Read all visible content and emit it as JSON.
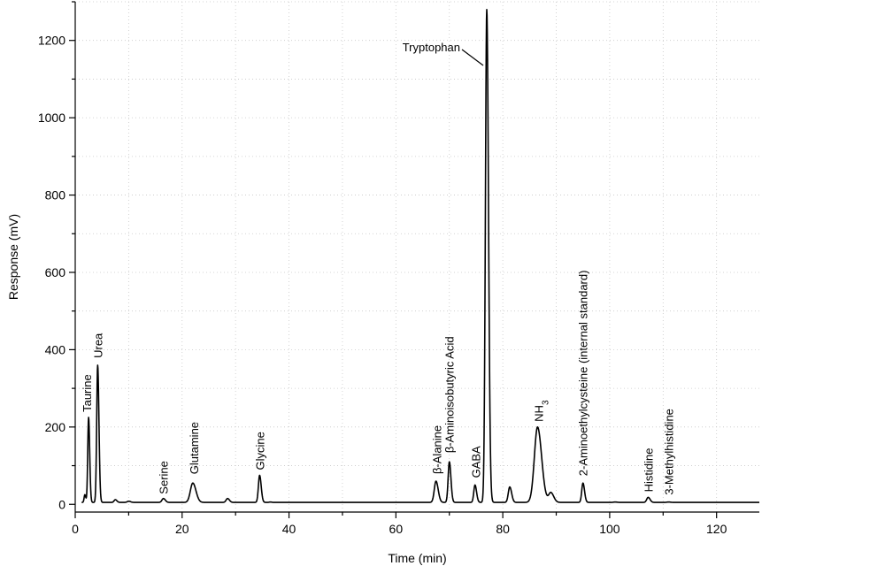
{
  "chart_data": {
    "type": "line",
    "title": "",
    "xlabel": "Time (min)",
    "ylabel": "Response (mV)",
    "xlim": [
      0,
      128
    ],
    "ylim": [
      -20,
      1300
    ],
    "xticks": [
      0,
      20,
      40,
      60,
      80,
      100,
      120
    ],
    "yticks": [
      0,
      200,
      400,
      600,
      800,
      1000,
      1200
    ],
    "grid": true,
    "legend": "none",
    "baseline": 5,
    "peaks": [
      {
        "label": "Taurine",
        "x": 2.5,
        "y": 225,
        "width": 0.35
      },
      {
        "label": "Urea",
        "x": 4.2,
        "y": 360,
        "width": 0.4
      },
      {
        "label": "Serine",
        "x": 16.5,
        "y": 15,
        "width": 0.6
      },
      {
        "label": "Glutamine",
        "x": 22.0,
        "y": 55,
        "width": 1.0
      },
      {
        "label": "Glycine",
        "x": 34.5,
        "y": 75,
        "width": 0.5
      },
      {
        "label": "β-Alanine",
        "x": 67.5,
        "y": 60,
        "width": 0.7
      },
      {
        "label": "β-Aminoisobutyric Acid",
        "x": 70.0,
        "y": 110,
        "width": 0.5
      },
      {
        "label": "GABA",
        "x": 74.8,
        "y": 50,
        "width": 0.5
      },
      {
        "label": "Tryptophan",
        "x": 77.0,
        "y": 1280,
        "width": 0.55
      },
      {
        "label": "NH3",
        "x": 86.5,
        "y": 200,
        "width": 1.3
      },
      {
        "label": "2-Aminoethylcysteine (internal standard)",
        "x": 95.0,
        "y": 55,
        "width": 0.5
      },
      {
        "label": "Histidine",
        "x": 107.2,
        "y": 18,
        "width": 0.6
      },
      {
        "label": "3-Methylhistidine",
        "x": 111.0,
        "y": 6,
        "width": 0.6
      }
    ],
    "minor_peaks": [
      {
        "x": 1.8,
        "y": 25,
        "width": 0.3
      },
      {
        "x": 7.5,
        "y": 12,
        "width": 0.5
      },
      {
        "x": 10.0,
        "y": 8,
        "width": 0.6
      },
      {
        "x": 28.5,
        "y": 15,
        "width": 0.6
      },
      {
        "x": 36.5,
        "y": 6,
        "width": 0.4
      },
      {
        "x": 81.3,
        "y": 45,
        "width": 0.6
      },
      {
        "x": 89.0,
        "y": 30,
        "width": 0.9
      },
      {
        "x": 101.0,
        "y": 6,
        "width": 0.6
      },
      {
        "x": 104.5,
        "y": 5,
        "width": 0.6
      }
    ]
  }
}
